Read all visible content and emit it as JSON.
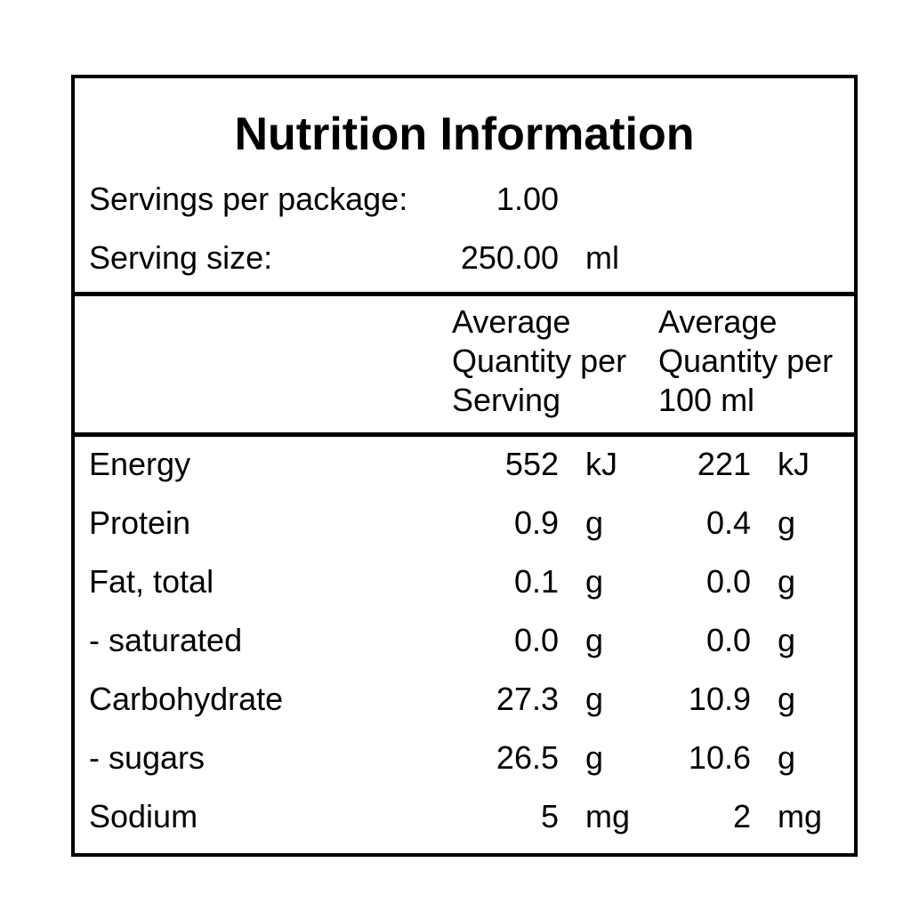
{
  "title": "Nutrition Information",
  "servings": {
    "package_label": "Servings per package:",
    "package_value": "1.00",
    "size_label": "Serving size:",
    "size_value": "250.00",
    "size_unit": "ml"
  },
  "headers": {
    "per_serving": [
      "Average",
      "Quantity per",
      "Serving"
    ],
    "per_100": [
      "Average",
      "Quantity per",
      "100 ml"
    ]
  },
  "rows": [
    {
      "label": "Energy",
      "serving_value": "552",
      "serving_unit": "kJ",
      "per100_value": "221",
      "per100_unit": "kJ"
    },
    {
      "label": "Protein",
      "serving_value": "0.9",
      "serving_unit": "g",
      "per100_value": "0.4",
      "per100_unit": "g"
    },
    {
      "label": "Fat, total",
      "serving_value": "0.1",
      "serving_unit": "g",
      "per100_value": "0.0",
      "per100_unit": "g"
    },
    {
      "label": "- saturated",
      "serving_value": "0.0",
      "serving_unit": "g",
      "per100_value": "0.0",
      "per100_unit": "g"
    },
    {
      "label": "Carbohydrate",
      "serving_value": "27.3",
      "serving_unit": "g",
      "per100_value": "10.9",
      "per100_unit": "g"
    },
    {
      "label": "- sugars",
      "serving_value": "26.5",
      "serving_unit": "g",
      "per100_value": "10.6",
      "per100_unit": "g"
    },
    {
      "label": "Sodium",
      "serving_value": "5",
      "serving_unit": "mg",
      "per100_value": "2",
      "per100_unit": "mg"
    }
  ]
}
